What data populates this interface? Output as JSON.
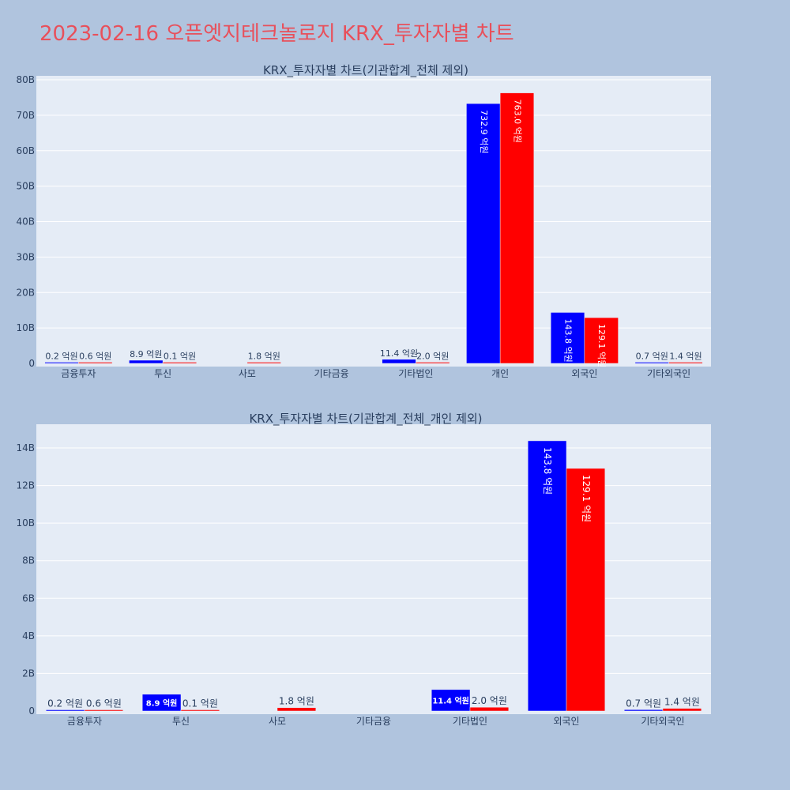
{
  "page": {
    "title": "2023-02-16 오픈엣지테크놀로지 KRX_투자자별 차트",
    "background": "#b0c4de"
  },
  "colors": {
    "buy": "#0000ff",
    "sell": "#ff0000",
    "title": "#e8505b",
    "plot_bg": "#e5ecf6"
  },
  "chart_data": [
    {
      "type": "bar",
      "title": "KRX_투자자별 차트(기관합계_전체 제외)",
      "categories": [
        "금융투자",
        "투신",
        "사모",
        "기타금융",
        "기타법인",
        "개인",
        "외국인",
        "기타외국인"
      ],
      "series": [
        {
          "color": "#0000ff",
          "values": [
            0.02,
            0.89,
            null,
            null,
            1.14,
            73.29,
            14.38,
            0.07
          ],
          "labels": [
            "0.2 억원",
            "8.9 억원",
            "",
            "",
            "11.4 억원",
            "732.9 억원",
            "143.8 억원",
            "0.7 억원"
          ]
        },
        {
          "color": "#ff0000",
          "values": [
            0.06,
            0.01,
            0.18,
            null,
            0.2,
            76.3,
            12.91,
            0.14
          ],
          "labels": [
            "0.6 억원",
            "0.1 억원",
            "1.8 억원",
            "",
            "2.0 억원",
            "763.0 억원",
            "129.1 억원",
            "1.4 억원"
          ]
        }
      ],
      "yunit": "B",
      "ylim": [
        0,
        80
      ],
      "yticks": [
        "0",
        "10B",
        "20B",
        "30B",
        "40B",
        "50B",
        "60B",
        "70B",
        "80B"
      ],
      "grid": true
    },
    {
      "type": "bar",
      "title": "KRX_투자자별 차트(기관합계_전체_개인 제외)",
      "categories": [
        "금융투자",
        "투신",
        "사모",
        "기타금융",
        "기타법인",
        "외국인",
        "기타외국인"
      ],
      "series": [
        {
          "color": "#0000ff",
          "values": [
            0.02,
            0.89,
            null,
            null,
            1.14,
            14.38,
            0.07
          ],
          "labels": [
            "0.2 억원",
            "8.9 억원",
            "",
            "",
            "11.4 억원",
            "143.8 억원",
            "0.7 억원"
          ]
        },
        {
          "color": "#ff0000",
          "values": [
            0.06,
            0.01,
            0.18,
            null,
            0.2,
            12.91,
            0.14
          ],
          "labels": [
            "0.6 억원",
            "0.1 억원",
            "1.8 억원",
            "",
            "2.0 억원",
            "129.1 억원",
            "1.4 억원"
          ]
        }
      ],
      "yunit": "B",
      "ylim": [
        0,
        15
      ],
      "yticks": [
        "0",
        "2B",
        "4B",
        "6B",
        "8B",
        "10B",
        "12B",
        "14B"
      ],
      "grid": true
    }
  ]
}
